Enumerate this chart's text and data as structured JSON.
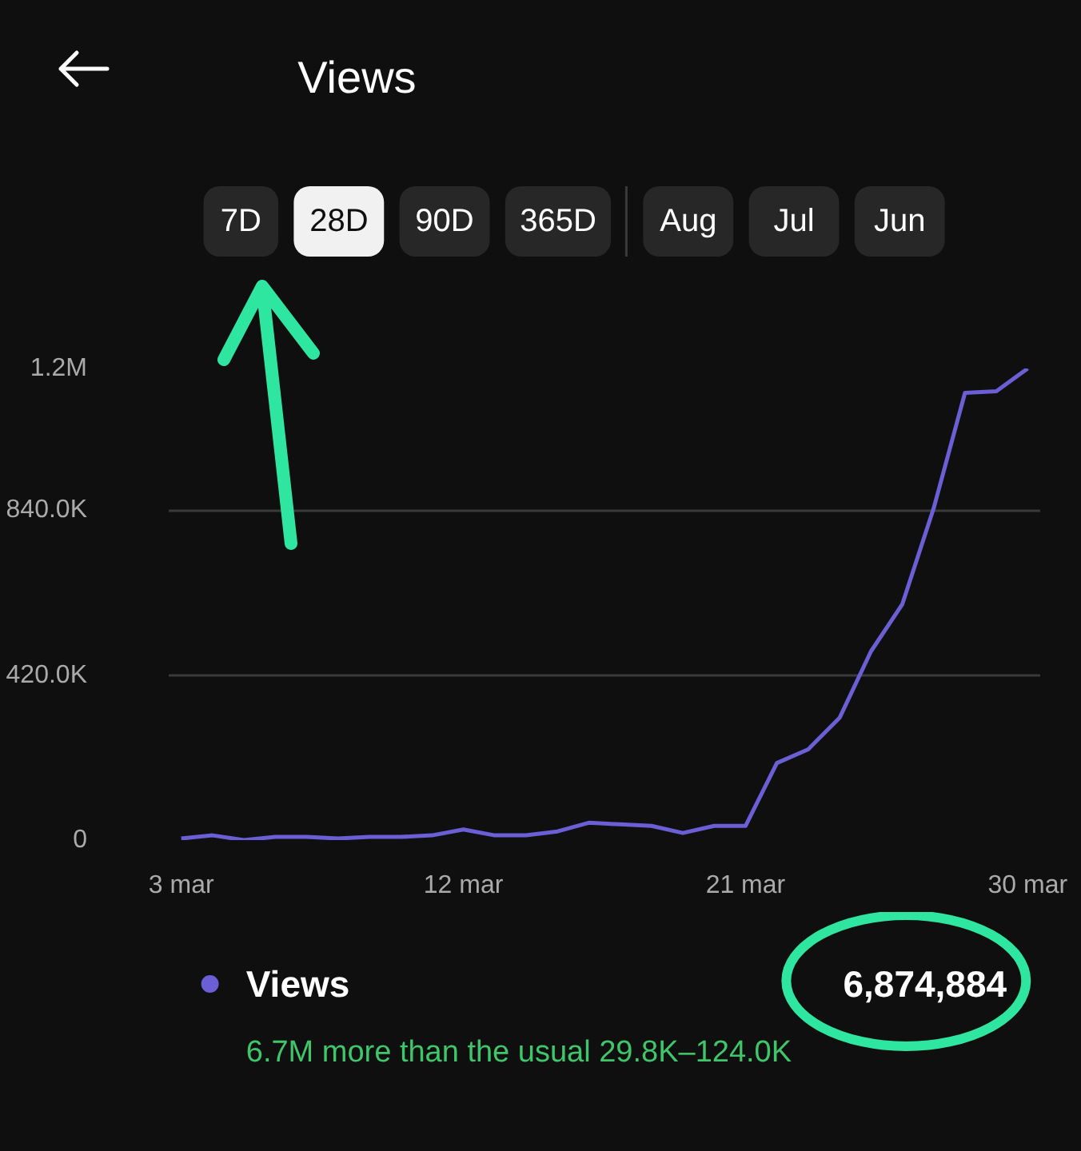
{
  "chart_data": {
    "type": "line",
    "title": "Views",
    "categories": [
      "3 mar",
      null,
      null,
      null,
      null,
      null,
      null,
      null,
      null,
      "12 mar",
      null,
      null,
      null,
      null,
      null,
      null,
      null,
      null,
      "21 mar",
      null,
      null,
      null,
      null,
      null,
      null,
      null,
      null,
      "30 mar"
    ],
    "ylim": [
      0,
      1200000
    ],
    "yticks": [
      0,
      {
        "value": 420000,
        "label": "420.0K"
      },
      {
        "value": 840000,
        "label": "840.0K"
      },
      {
        "value": 1200000,
        "label": "1.2M"
      }
    ],
    "series": [
      {
        "name": "Views",
        "color": "#6b5fd6",
        "values": [
          4000,
          12000,
          0,
          8000,
          8000,
          4000,
          8000,
          8000,
          12000,
          27000,
          12000,
          12000,
          22000,
          44000,
          40000,
          36000,
          18000,
          36000,
          36000,
          196000,
          231000,
          311000,
          480000,
          600000,
          844000,
          1138000,
          1142000,
          1200000
        ]
      }
    ],
    "grid": "y",
    "legend": "bottom",
    "marker": "none",
    "line_style": "solid",
    "annotations": [
      "7D",
      "28D",
      "90D",
      "365D",
      "Aug",
      "Jul",
      "Jun",
      "6,874,884",
      "6.7M more than the usual 29.8K–124.0K"
    ]
  }
}
